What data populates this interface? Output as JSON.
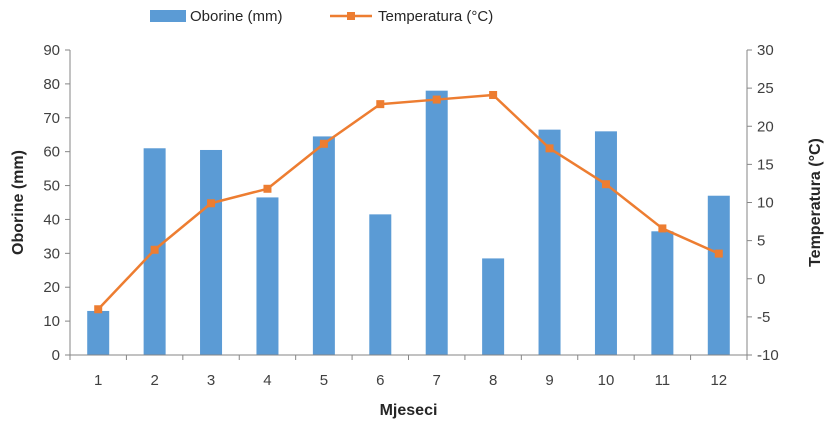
{
  "chart_data": {
    "type": "bar",
    "categories": [
      "1",
      "2",
      "3",
      "4",
      "5",
      "6",
      "7",
      "8",
      "9",
      "10",
      "11",
      "12"
    ],
    "xlabel": "Mjeseci",
    "ylabel": "Oborine (mm)",
    "y2label": "Temperatura (°C)",
    "ylim": [
      0,
      90
    ],
    "y2lim": [
      -10,
      30
    ],
    "yticks": [
      0,
      10,
      20,
      30,
      40,
      50,
      60,
      70,
      80,
      90
    ],
    "y2ticks": [
      -10,
      -5,
      0,
      5,
      10,
      15,
      20,
      25,
      30
    ],
    "grid": false,
    "legend_position": "top",
    "series": [
      {
        "name": "Oborine (mm)",
        "type": "bar",
        "axis": "left",
        "color": "#5B9BD5",
        "values": [
          13,
          61,
          60.5,
          46.5,
          64.5,
          41.5,
          78,
          28.5,
          66.5,
          66,
          36.5,
          47
        ]
      },
      {
        "name": "Temperatura (°C)",
        "type": "line",
        "axis": "right",
        "color": "#ED7D31",
        "marker": "square",
        "values": [
          -4,
          3.8,
          9.9,
          11.8,
          17.7,
          22.9,
          23.5,
          24.1,
          17.1,
          12.4,
          6.6,
          3.3
        ]
      }
    ]
  }
}
